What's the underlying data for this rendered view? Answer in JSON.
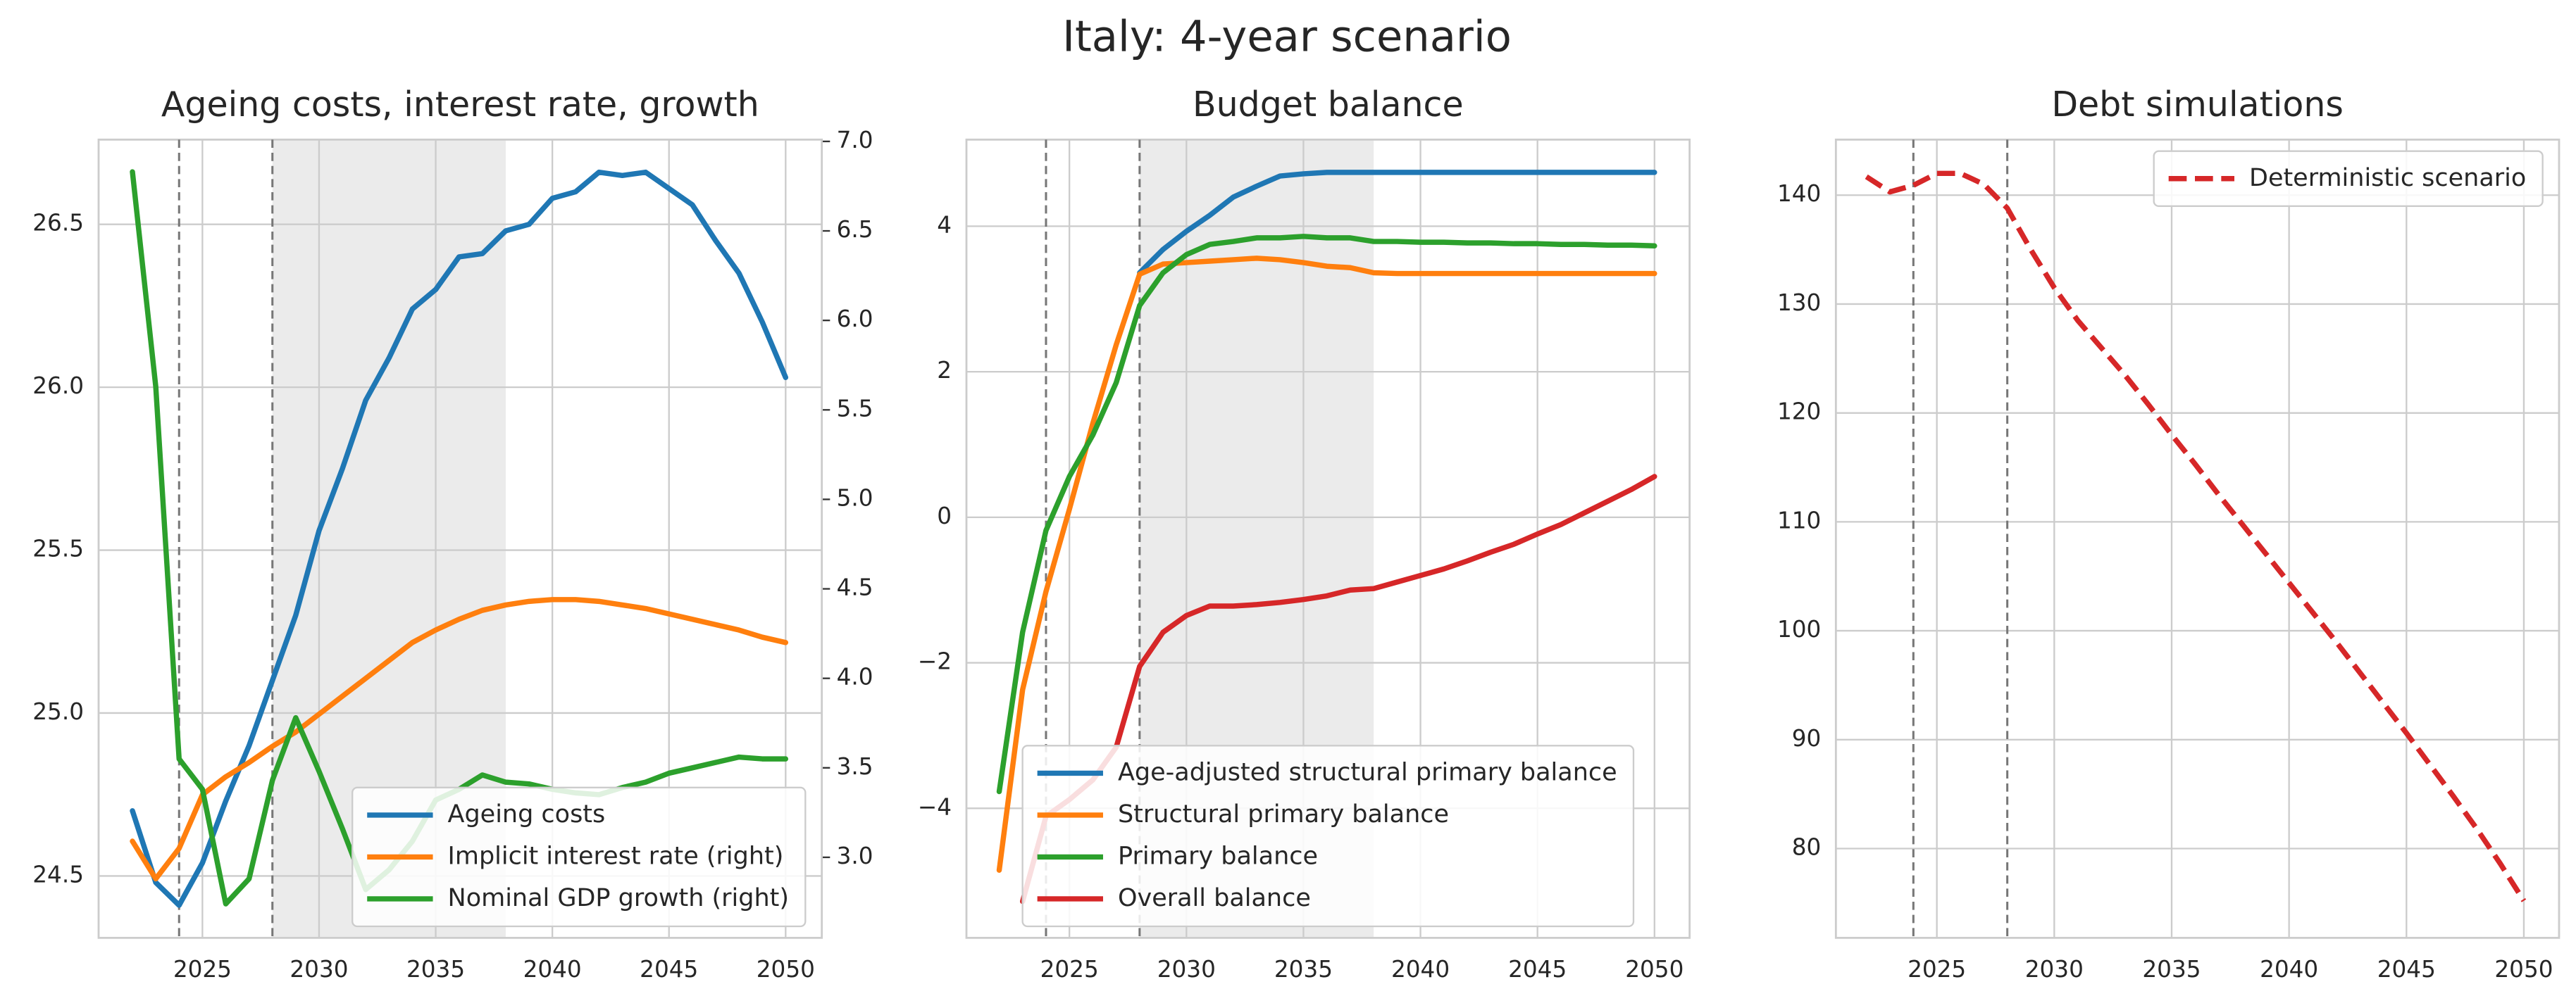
{
  "title": "Italy: 4-year scenario",
  "chart_data": [
    {
      "type": "line",
      "title": "Ageing costs, interest rate, growth",
      "x": [
        2022,
        2023,
        2024,
        2025,
        2026,
        2027,
        2028,
        2029,
        2030,
        2031,
        2032,
        2033,
        2034,
        2035,
        2036,
        2037,
        2038,
        2039,
        2040,
        2041,
        2042,
        2043,
        2044,
        2045,
        2046,
        2047,
        2048,
        2049,
        2050
      ],
      "xlim": [
        2020.55,
        2051.55
      ],
      "xticks": [
        2025,
        2030,
        2035,
        2040,
        2045,
        2050
      ],
      "ylim": [
        24.31,
        26.76
      ],
      "yticks": [
        24.5,
        {
          "value": 25,
          "label": "25.0"
        },
        25.5,
        {
          "value": 26,
          "label": "26.0"
        },
        26.5
      ],
      "y2lim": [
        2.55,
        7.01
      ],
      "y2ticks": [
        {
          "value": 3,
          "label": "3.0"
        },
        3.5,
        {
          "value": 4,
          "label": "4.0"
        },
        4.5,
        {
          "value": 5,
          "label": "5.0"
        },
        5.5,
        {
          "value": 6,
          "label": "6.0"
        },
        6.5,
        {
          "value": 7,
          "label": "7.0"
        }
      ],
      "grid": true,
      "legend": "lower right",
      "vlines": [
        2024,
        2028
      ],
      "shade": [
        2028,
        2038
      ],
      "series": [
        {
          "name": "Ageing costs",
          "color": "#1f77b4",
          "values": [
            24.7,
            24.48,
            24.41,
            24.54,
            24.73,
            24.9,
            25.1,
            25.3,
            25.56,
            25.75,
            25.96,
            26.09,
            26.24,
            26.3,
            26.4,
            26.41,
            26.48,
            26.5,
            26.58,
            26.6,
            26.66,
            26.65,
            26.66,
            26.61,
            26.56,
            26.45,
            26.35,
            26.2,
            26.03
          ]
        },
        {
          "name": "Implicit interest rate (right)",
          "color": "#ff7f0e",
          "axis": "y2",
          "values": [
            3.09,
            2.88,
            3.05,
            3.35,
            3.45,
            3.53,
            3.62,
            3.7,
            3.8,
            3.9,
            4.0,
            4.1,
            4.2,
            4.27,
            4.33,
            4.38,
            4.41,
            4.43,
            4.44,
            4.44,
            4.43,
            4.41,
            4.39,
            4.36,
            4.33,
            4.3,
            4.27,
            4.23,
            4.2
          ]
        },
        {
          "name": "Nominal GDP growth (right)",
          "color": "#2ca02c",
          "axis": "y2",
          "values": [
            6.83,
            5.63,
            3.55,
            3.38,
            2.74,
            2.88,
            3.43,
            3.78,
            3.48,
            3.16,
            2.82,
            2.93,
            3.09,
            3.32,
            3.38,
            3.46,
            3.42,
            3.41,
            3.38,
            3.36,
            3.35,
            3.39,
            3.42,
            3.47,
            3.5,
            3.53,
            3.56,
            3.55,
            3.55
          ]
        }
      ]
    },
    {
      "type": "line",
      "title": "Budget balance",
      "x": [
        2022,
        2023,
        2024,
        2025,
        2026,
        2027,
        2028,
        2029,
        2030,
        2031,
        2032,
        2033,
        2034,
        2035,
        2036,
        2037,
        2038,
        2039,
        2040,
        2041,
        2042,
        2043,
        2044,
        2045,
        2046,
        2047,
        2048,
        2049,
        2050
      ],
      "xlim": [
        2020.6,
        2051.5
      ],
      "xticks": [
        2025,
        2030,
        2035,
        2040,
        2045,
        2050
      ],
      "ylim": [
        -5.78,
        5.19
      ],
      "yticks": [
        {
          "value": -4,
          "label": "−4"
        },
        {
          "value": -2,
          "label": "−2"
        },
        0,
        2,
        4
      ],
      "grid": true,
      "legend": "lower center",
      "vlines": [
        2024,
        2028
      ],
      "shade": [
        2028,
        2038
      ],
      "series": [
        {
          "name": "Age-adjusted structural primary balance",
          "color": "#1f77b4",
          "values": [
            null,
            null,
            null,
            null,
            null,
            null,
            3.36,
            3.68,
            3.93,
            4.15,
            4.4,
            4.55,
            4.69,
            4.72,
            4.74,
            4.74,
            4.74,
            4.74,
            4.74,
            4.74,
            4.74,
            4.74,
            4.74,
            4.74,
            4.74,
            4.74,
            4.74,
            4.74,
            4.74
          ]
        },
        {
          "name": "Structural primary balance",
          "color": "#ff7f0e",
          "values": [
            -4.85,
            -2.37,
            -1.02,
            0.11,
            1.29,
            2.37,
            3.34,
            3.48,
            3.5,
            3.52,
            3.54,
            3.56,
            3.54,
            3.5,
            3.45,
            3.43,
            3.36,
            3.35,
            3.35,
            3.35,
            3.35,
            3.35,
            3.35,
            3.35,
            3.35,
            3.35,
            3.35,
            3.35,
            3.35
          ]
        },
        {
          "name": "Primary balance",
          "color": "#2ca02c",
          "values": [
            -3.77,
            -1.58,
            -0.18,
            0.56,
            1.13,
            1.85,
            2.91,
            3.36,
            3.61,
            3.75,
            3.79,
            3.84,
            3.84,
            3.86,
            3.84,
            3.84,
            3.79,
            3.79,
            3.78,
            3.78,
            3.77,
            3.77,
            3.76,
            3.76,
            3.75,
            3.75,
            3.74,
            3.74,
            3.73
          ]
        },
        {
          "name": "Overall balance",
          "color": "#d62728",
          "values": [
            null,
            -5.28,
            -4.11,
            -3.88,
            -3.61,
            -3.16,
            -2.05,
            -1.58,
            -1.35,
            -1.22,
            -1.22,
            -1.2,
            -1.17,
            -1.13,
            -1.08,
            -1.0,
            -0.98,
            -0.89,
            -0.8,
            -0.71,
            -0.6,
            -0.48,
            -0.37,
            -0.23,
            -0.1,
            0.06,
            0.22,
            0.38,
            0.56
          ]
        }
      ]
    },
    {
      "type": "line",
      "title": "Debt simulations",
      "x": [
        2022,
        2023,
        2024,
        2025,
        2026,
        2027,
        2028,
        2029,
        2030,
        2031,
        2032,
        2033,
        2034,
        2035,
        2036,
        2037,
        2038,
        2039,
        2040,
        2041,
        2042,
        2043,
        2044,
        2045,
        2046,
        2047,
        2048,
        2049,
        2050
      ],
      "xlim": [
        2020.7,
        2051.5
      ],
      "xticks": [
        2025,
        2030,
        2035,
        2040,
        2045,
        2050
      ],
      "ylim": [
        71.8,
        145.1
      ],
      "yticks": [
        80,
        90,
        100,
        110,
        120,
        130,
        140
      ],
      "grid": true,
      "legend": "upper right",
      "vlines": [
        2024,
        2028
      ],
      "series": [
        {
          "name": "Deterministic scenario",
          "color": "#d62728",
          "linestyle": "dashed",
          "values": [
            141.7,
            140.3,
            140.9,
            142.0,
            142.0,
            141.0,
            138.8,
            135.0,
            131.5,
            128.5,
            126.0,
            123.5,
            120.8,
            118.0,
            115.3,
            112.5,
            109.8,
            107.1,
            104.4,
            101.7,
            99.0,
            96.2,
            93.4,
            90.6,
            87.7,
            84.8,
            81.8,
            78.6,
            75.2
          ]
        }
      ]
    }
  ]
}
